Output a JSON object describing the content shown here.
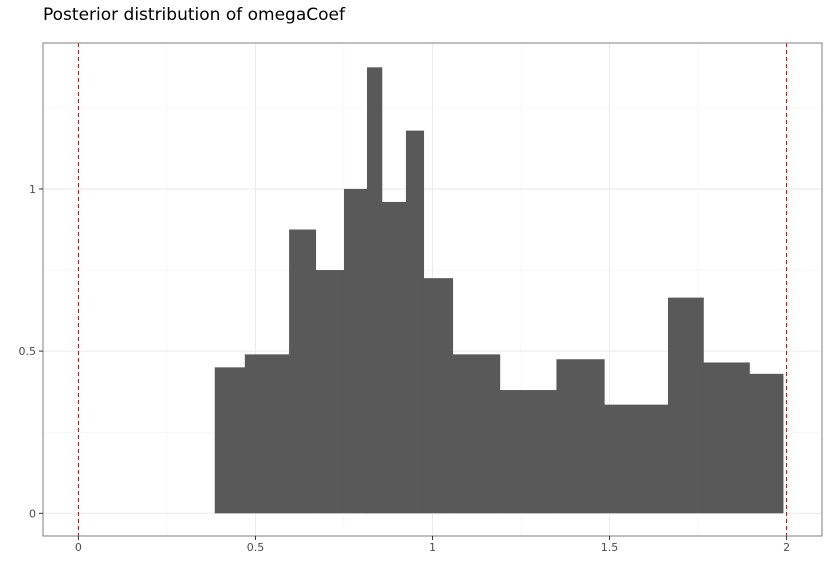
{
  "chart_data": {
    "type": "bar",
    "title": "Posterior distribution of omegaCoef",
    "xlabel": "",
    "ylabel": "",
    "xlim": [
      -0.1,
      2.1
    ],
    "ylim": [
      -0.07,
      1.45
    ],
    "x_ticks": [
      {
        "value": 0,
        "label": "0"
      },
      {
        "value": 0.5,
        "label": "0.5"
      },
      {
        "value": 1,
        "label": "1"
      },
      {
        "value": 1.5,
        "label": "1.5"
      },
      {
        "value": 2,
        "label": "2"
      }
    ],
    "y_ticks": [
      {
        "value": 0,
        "label": "0"
      },
      {
        "value": 0.5,
        "label": "0.5"
      },
      {
        "value": 1,
        "label": "1"
      }
    ],
    "bins": [
      {
        "x0": 0.385,
        "x1": 0.47,
        "value": 0.45
      },
      {
        "x0": 0.47,
        "x1": 0.595,
        "value": 0.49
      },
      {
        "x0": 0.595,
        "x1": 0.67,
        "value": 0.875
      },
      {
        "x0": 0.67,
        "x1": 0.75,
        "value": 0.75
      },
      {
        "x0": 0.75,
        "x1": 0.815,
        "value": 1.0
      },
      {
        "x0": 0.815,
        "x1": 0.857,
        "value": 1.375
      },
      {
        "x0": 0.857,
        "x1": 0.925,
        "value": 0.96
      },
      {
        "x0": 0.925,
        "x1": 0.975,
        "value": 1.18
      },
      {
        "x0": 0.975,
        "x1": 1.057,
        "value": 0.725
      },
      {
        "x0": 1.057,
        "x1": 1.19,
        "value": 0.49
      },
      {
        "x0": 1.19,
        "x1": 1.35,
        "value": 0.38
      },
      {
        "x0": 1.35,
        "x1": 1.485,
        "value": 0.475
      },
      {
        "x0": 1.485,
        "x1": 1.665,
        "value": 0.335
      },
      {
        "x0": 1.665,
        "x1": 1.765,
        "value": 0.665
      },
      {
        "x0": 1.765,
        "x1": 1.895,
        "value": 0.465
      },
      {
        "x0": 1.895,
        "x1": 1.99,
        "value": 0.43
      }
    ],
    "vlines": [
      0,
      2
    ],
    "bar_color": "#595959",
    "vline_color": "#cc0000",
    "grid": true,
    "legend": "none"
  }
}
